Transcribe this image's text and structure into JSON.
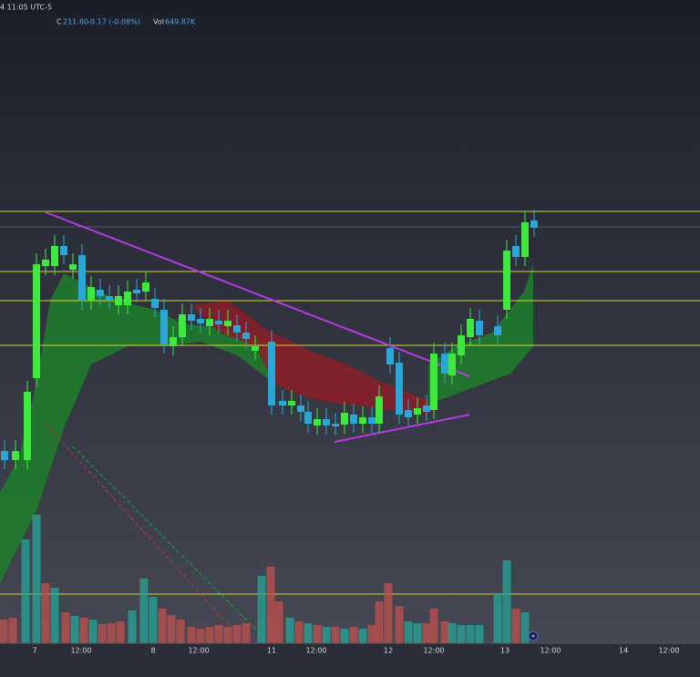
{
  "header": {
    "time": "4 11:05 UTC-5",
    "close_label": "C",
    "close": "211.80",
    "change": "-0.17 (-0.08%)",
    "volume_label": "Vol",
    "volume": "649.87K"
  },
  "x_axis": {
    "labels": [
      "7",
      "12:00",
      "8",
      "12:00",
      "11",
      "12:00",
      "12",
      "12:00",
      "13",
      "12:00",
      "14",
      "12:00"
    ]
  }
}
